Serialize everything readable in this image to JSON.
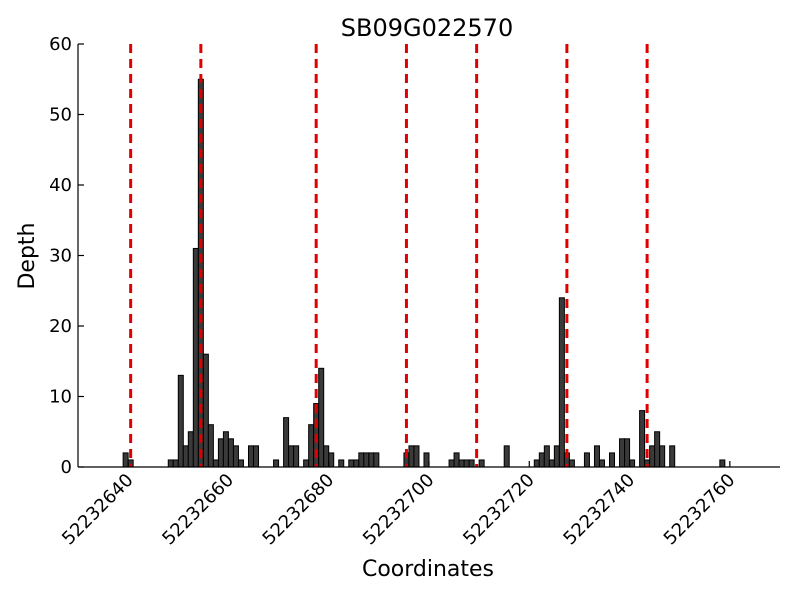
{
  "chart_data": {
    "type": "bar",
    "title": "SB09G022570",
    "xlabel": "Coordinates",
    "ylabel": "Depth",
    "xlim": [
      52232630,
      52232770
    ],
    "ylim": [
      0,
      60
    ],
    "x_ticks": [
      52232640,
      52232660,
      52232680,
      52232700,
      52232720,
      52232740,
      52232760
    ],
    "y_ticks": [
      0,
      10,
      20,
      30,
      40,
      50,
      60
    ],
    "x_tick_labels": [
      "52232640",
      "52232660",
      "52232680",
      "52232700",
      "52232720",
      "52232740",
      "52232760"
    ],
    "y_tick_labels": [
      "0",
      "10",
      "20",
      "30",
      "40",
      "50",
      "60"
    ],
    "bar_width": 1,
    "bars": [
      {
        "x": 52232639,
        "y": 2
      },
      {
        "x": 52232640,
        "y": 1
      },
      {
        "x": 52232648,
        "y": 1
      },
      {
        "x": 52232649,
        "y": 1
      },
      {
        "x": 52232650,
        "y": 13
      },
      {
        "x": 52232651,
        "y": 3
      },
      {
        "x": 52232652,
        "y": 5
      },
      {
        "x": 52232653,
        "y": 31
      },
      {
        "x": 52232654,
        "y": 55
      },
      {
        "x": 52232655,
        "y": 16
      },
      {
        "x": 52232656,
        "y": 6
      },
      {
        "x": 52232657,
        "y": 1
      },
      {
        "x": 52232658,
        "y": 4
      },
      {
        "x": 52232659,
        "y": 5
      },
      {
        "x": 52232660,
        "y": 4
      },
      {
        "x": 52232661,
        "y": 3
      },
      {
        "x": 52232662,
        "y": 1
      },
      {
        "x": 52232664,
        "y": 3
      },
      {
        "x": 52232665,
        "y": 3
      },
      {
        "x": 52232669,
        "y": 1
      },
      {
        "x": 52232671,
        "y": 7
      },
      {
        "x": 52232672,
        "y": 3
      },
      {
        "x": 52232673,
        "y": 3
      },
      {
        "x": 52232675,
        "y": 1
      },
      {
        "x": 52232676,
        "y": 6
      },
      {
        "x": 52232677,
        "y": 9
      },
      {
        "x": 52232678,
        "y": 14
      },
      {
        "x": 52232679,
        "y": 3
      },
      {
        "x": 52232680,
        "y": 2
      },
      {
        "x": 52232682,
        "y": 1
      },
      {
        "x": 52232684,
        "y": 1
      },
      {
        "x": 52232685,
        "y": 1
      },
      {
        "x": 52232686,
        "y": 2
      },
      {
        "x": 52232687,
        "y": 2
      },
      {
        "x": 52232688,
        "y": 2
      },
      {
        "x": 52232689,
        "y": 2
      },
      {
        "x": 52232695,
        "y": 2
      },
      {
        "x": 52232696,
        "y": 3
      },
      {
        "x": 52232697,
        "y": 3
      },
      {
        "x": 52232699,
        "y": 2
      },
      {
        "x": 52232704,
        "y": 1
      },
      {
        "x": 52232705,
        "y": 2
      },
      {
        "x": 52232706,
        "y": 1
      },
      {
        "x": 52232707,
        "y": 1
      },
      {
        "x": 52232708,
        "y": 1
      },
      {
        "x": 52232710,
        "y": 1
      },
      {
        "x": 52232715,
        "y": 3
      },
      {
        "x": 52232721,
        "y": 1
      },
      {
        "x": 52232722,
        "y": 2
      },
      {
        "x": 52232723,
        "y": 3
      },
      {
        "x": 52232724,
        "y": 1
      },
      {
        "x": 52232725,
        "y": 3
      },
      {
        "x": 52232726,
        "y": 24
      },
      {
        "x": 52232727,
        "y": 2
      },
      {
        "x": 52232728,
        "y": 1
      },
      {
        "x": 52232731,
        "y": 2
      },
      {
        "x": 52232733,
        "y": 3
      },
      {
        "x": 52232734,
        "y": 1
      },
      {
        "x": 52232736,
        "y": 2
      },
      {
        "x": 52232738,
        "y": 4
      },
      {
        "x": 52232739,
        "y": 4
      },
      {
        "x": 52232740,
        "y": 1
      },
      {
        "x": 52232742,
        "y": 8
      },
      {
        "x": 52232743,
        "y": 1
      },
      {
        "x": 52232744,
        "y": 3
      },
      {
        "x": 52232745,
        "y": 5
      },
      {
        "x": 52232746,
        "y": 3
      },
      {
        "x": 52232748,
        "y": 3
      },
      {
        "x": 52232758,
        "y": 1
      }
    ],
    "vertical_lines": [
      52232640.5,
      52232654.5,
      52232677.5,
      52232695.5,
      52232709.5,
      52232727.5,
      52232743.5
    ],
    "colors": {
      "bar": "#3a3a3a",
      "vertical_line": "#e00000"
    },
    "grid": false,
    "legend": "none"
  }
}
